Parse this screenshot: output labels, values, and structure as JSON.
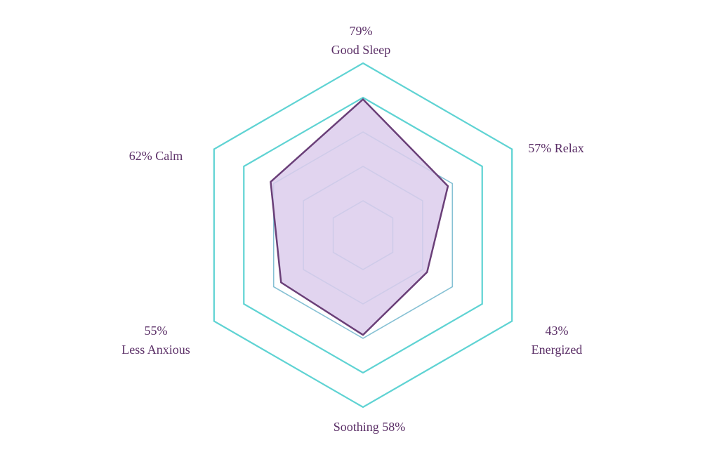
{
  "chart_data": {
    "type": "radar",
    "axes": [
      {
        "key": "good_sleep",
        "value": 79,
        "lines": [
          "79%",
          "Good Sleep"
        ]
      },
      {
        "key": "relax",
        "value": 57,
        "lines": [
          "57% Relax"
        ]
      },
      {
        "key": "energized",
        "value": 43,
        "lines": [
          "43%",
          "Energized"
        ]
      },
      {
        "key": "soothing",
        "value": 58,
        "lines": [
          "Soothing 58%"
        ]
      },
      {
        "key": "less_anxious",
        "value": 55,
        "lines": [
          "55%",
          "Less Anxious"
        ]
      },
      {
        "key": "calm",
        "value": 62,
        "lines": [
          "62% Calm"
        ]
      }
    ],
    "range": [
      0,
      100
    ],
    "grid_rings": [
      20,
      40,
      60,
      80,
      100
    ],
    "legend": "none",
    "colors": {
      "outer_grid": "#5fd3d3",
      "inner_grid": "#86c1d4",
      "fill": "#dcccec",
      "stroke": "#6a3f78",
      "label": "#5a2e66"
    }
  }
}
